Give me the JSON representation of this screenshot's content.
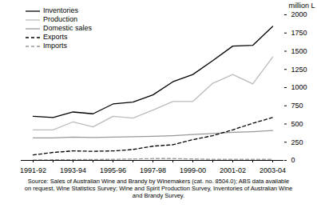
{
  "chart_data": {
    "type": "line",
    "y_label": "million L",
    "categories": [
      "1991-92",
      null,
      "1993-94",
      null,
      "1995-96",
      null,
      "1997-98",
      null,
      "1999-00",
      null,
      "2001-02",
      null,
      "2003-04"
    ],
    "series": [
      {
        "name": "Inventories",
        "color": "#000000",
        "line_style": "solid",
        "values": [
          605,
          590,
          665,
          640,
          775,
          800,
          900,
          1080,
          1180,
          1370,
          1570,
          1580,
          1840
        ]
      },
      {
        "name": "Production",
        "color": "#bbbbbb",
        "line_style": "solid",
        "values": [
          420,
          420,
          530,
          460,
          605,
          580,
          690,
          810,
          810,
          1060,
          1180,
          1050,
          1420
        ]
      },
      {
        "name": "Domestic sales",
        "color": "#999999",
        "line_style": "solid",
        "values": [
          310,
          310,
          320,
          315,
          320,
          325,
          330,
          340,
          355,
          370,
          385,
          395,
          410
        ]
      },
      {
        "name": "Exports",
        "color": "#000000",
        "line_style": "dashed",
        "values": [
          75,
          110,
          130,
          125,
          130,
          150,
          195,
          215,
          285,
          340,
          420,
          510,
          590
        ]
      },
      {
        "name": "Imports",
        "color": "#999999",
        "line_style": "dashed",
        "values": [
          5,
          8,
          10,
          12,
          15,
          20,
          25,
          25,
          20,
          15,
          15,
          15,
          15
        ]
      }
    ],
    "ylim": [
      0,
      2000
    ],
    "yticks": [
      0,
      250,
      500,
      750,
      1000,
      1250,
      1500,
      1750,
      2000
    ],
    "grid": false,
    "legend": "top-left",
    "source": "Source: Sales of Australian Wine and Brandy by Winemakers (cat. no. 8504.0); ABS data available on request, Wine Statistics Survey; Wine and Spirit Production Survey, Inventories of Australian Wine and Brandy Survey."
  }
}
